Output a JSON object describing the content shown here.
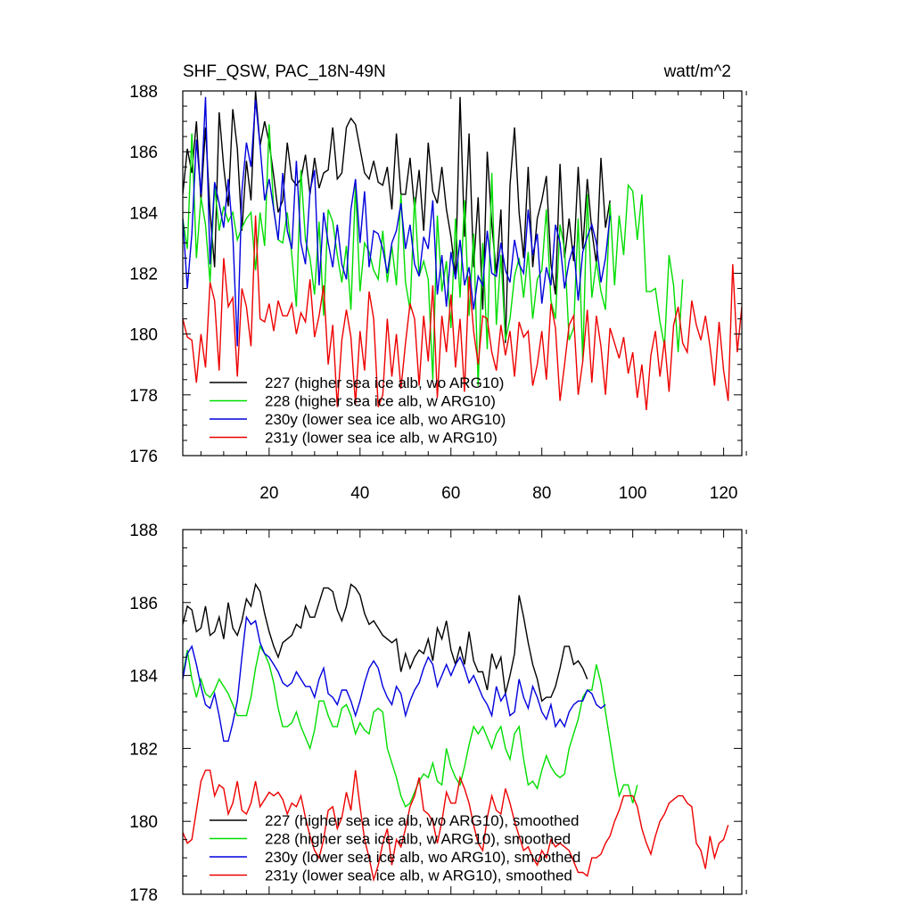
{
  "chart_data": [
    {
      "type": "line",
      "title": "SHF_QSW, PAC_18N-49N",
      "units": "watt/m^2",
      "xlabel": "",
      "ylabel": "",
      "xlim": [
        1,
        124
      ],
      "ylim": [
        176,
        188
      ],
      "x_ticks": [
        20,
        40,
        60,
        80,
        100,
        120
      ],
      "y_ticks": [
        176,
        178,
        180,
        182,
        184,
        186,
        188
      ],
      "legend_position": "bottom-left",
      "series": [
        {
          "name": "227 (higher sea ice alb, wo ARG10)",
          "color": "#000000",
          "values": [
            184.6,
            186.1,
            185.3,
            187.0,
            184.4,
            186.8,
            184.0,
            182.2,
            187.3,
            185.5,
            184.2,
            187.4,
            186.1,
            183.4,
            185.7,
            184.4,
            188.0,
            186.2,
            187.0,
            186.3,
            185.2,
            184.0,
            184.4,
            186.3,
            185.1,
            184.9,
            185.1,
            185.9,
            184.6,
            185.8,
            184.8,
            185.3,
            185.4,
            186.8,
            185.1,
            185.3,
            186.8,
            187.1,
            186.9,
            186.1,
            185.3,
            185.1,
            185.7,
            185.0,
            184.9,
            185.5,
            184.1,
            186.6,
            184.6,
            184.6,
            185.8,
            184.1,
            185.4,
            183.4,
            186.3,
            184.7,
            184.3,
            185.5,
            184.1,
            183.2,
            181.9,
            187.8,
            183.2,
            186.6,
            182.2,
            184.5,
            180.8,
            186.0,
            183.6,
            182.0,
            184.1,
            179.7,
            184.9,
            186.8,
            184.0,
            182.5,
            185.5,
            182.2,
            183.8,
            184.4,
            185.2,
            182.3,
            181.3,
            185.6,
            182.5,
            183.8,
            182.4,
            185.5,
            182.8,
            185.1,
            183.4,
            182.3,
            185.8,
            183.5,
            184.4
          ]
        },
        {
          "name": "228 (higher sea ice alb, w ARG10)",
          "color": "#00dd00",
          "values": [
            183.8,
            182.8,
            186.6,
            182.5,
            184.5,
            183.6,
            181.7,
            184.9,
            183.4,
            184.2,
            183.7,
            184.0,
            183.1,
            183.5,
            183.8,
            184.0,
            182.1,
            184.0,
            182.9,
            186.9,
            184.1,
            183.1,
            183.0,
            184.0,
            182.6,
            180.9,
            185.4,
            183.1,
            182.5,
            181.3,
            183.7,
            180.6,
            184.1,
            183.7,
            182.6,
            181.7,
            182.9,
            180.8,
            184.9,
            181.4,
            183.0,
            182.7,
            182.1,
            181.8,
            183.4,
            181.7,
            182.9,
            181.6,
            184.6,
            181.7,
            180.8,
            184.5,
            181.9,
            182.4,
            181.8,
            178.5,
            183.9,
            181.4,
            182.4,
            180.2,
            183.8,
            181.2,
            184.4,
            180.6,
            183.3,
            178.3,
            183.0,
            179.5,
            185.3,
            180.3,
            182.6,
            179.8,
            180.5,
            181.9,
            182.5,
            181.2,
            182.7,
            180.5,
            181.8,
            182.1,
            184.1,
            181.1,
            180.5,
            183.6,
            182.8,
            179.8,
            180.2,
            183.8,
            179.1,
            184.6,
            181.2,
            182.4,
            181.4,
            180.8,
            184.3,
            181.6,
            183.9,
            182.6,
            184.9,
            184.7,
            183.1,
            184.6,
            181.4,
            181.4,
            181.5,
            180.4,
            179.6,
            182.6,
            181.6,
            179.4,
            181.8
          ]
        },
        {
          "name": "230y (lower sea ice alb, wo ARG10)",
          "color": "#0000dd",
          "values": [
            183.8,
            181.5,
            183.3,
            186.4,
            184.6,
            187.8,
            182.3,
            185.0,
            184.3,
            183.5,
            185.1,
            183.3,
            179.6,
            184.7,
            186.3,
            185.5,
            187.7,
            186.2,
            184.4,
            185.1,
            184.1,
            183.1,
            185.3,
            183.4,
            182.8,
            185.7,
            183.0,
            182.3,
            184.7,
            185.4,
            181.6,
            184.0,
            183.0,
            182.2,
            183.6,
            182.3,
            181.8,
            184.1,
            185.1,
            183.0,
            184.7,
            182.2,
            183.4,
            183.3,
            182.8,
            182.0,
            183.0,
            183.4,
            184.3,
            182.8,
            183.6,
            182.3,
            181.9,
            183.2,
            182.8,
            184.4,
            181.3,
            182.6,
            180.9,
            182.7,
            181.8,
            183.1,
            181.6,
            182.2,
            180.8,
            181.9,
            181.6,
            183.4,
            182.0,
            181.9,
            183.0,
            182.1,
            181.7,
            183.1,
            182.3,
            182.0,
            184.1,
            182.6,
            183.3,
            181.0,
            182.2,
            181.6,
            183.6,
            183.0,
            181.5,
            182.4,
            182.9,
            181.1,
            182.7,
            183.2,
            183.6,
            183.0,
            181.7,
            182.5,
            183.9
          ]
        },
        {
          "name": "231y (lower sea ice alb, w ARG10)",
          "color": "#ee0000",
          "values": [
            180.5,
            179.9,
            179.8,
            178.4,
            180.0,
            178.9,
            181.7,
            181.1,
            178.8,
            182.5,
            180.9,
            181.2,
            178.6,
            181.5,
            180.9,
            179.6,
            183.9,
            180.5,
            180.4,
            181.0,
            180.1,
            181.1,
            180.6,
            180.6,
            181.0,
            180.0,
            180.7,
            180.4,
            181.8,
            179.9,
            180.6,
            181.6,
            179.0,
            180.3,
            177.6,
            179.8,
            180.8,
            179.9,
            177.7,
            180.1,
            178.8,
            181.4,
            180.5,
            177.6,
            178.0,
            180.5,
            178.6,
            180.0,
            178.2,
            179.7,
            181.0,
            180.5,
            178.3,
            180.6,
            179.1,
            181.6,
            177.9,
            180.6,
            179.4,
            181.3,
            178.9,
            180.5,
            178.1,
            181.9,
            180.1,
            179.0,
            180.6,
            180.5,
            179.4,
            178.8,
            180.3,
            179.3,
            180.1,
            178.6,
            180.4,
            179.9,
            180.1,
            178.3,
            179.0,
            180.1,
            178.5,
            181.0,
            180.2,
            177.8,
            179.0,
            180.3,
            180.6,
            178.0,
            179.1,
            180.8,
            178.4,
            180.6,
            179.6,
            178.0,
            180.2,
            179.7,
            179.2,
            179.9,
            178.7,
            179.4,
            177.9,
            179.0,
            177.5,
            179.3,
            180.1,
            178.6,
            179.8,
            178.1,
            180.3,
            180.9,
            179.7,
            179.4,
            181.1,
            180.3,
            179.8,
            180.6,
            179.6,
            178.3,
            180.4,
            178.8,
            177.8,
            182.3,
            179.4,
            180.9
          ]
        }
      ]
    },
    {
      "type": "line",
      "title": "",
      "xlabel": "",
      "ylabel": "",
      "xlim": [
        1,
        124
      ],
      "ylim": [
        178,
        188
      ],
      "y_ticks": [
        178,
        180,
        182,
        184,
        186,
        188
      ],
      "legend_position": "bottom-left",
      "series": [
        {
          "name": "227 (higher sea ice alb, wo ARG10), smoothed",
          "color": "#000000",
          "values": [
            185.4,
            185.9,
            185.8,
            185.2,
            185.3,
            185.9,
            185.1,
            185.2,
            185.6,
            185.0,
            186.0,
            185.3,
            185.1,
            185.5,
            186.1,
            185.9,
            186.5,
            186.3,
            185.7,
            185.2,
            184.8,
            184.5,
            184.9,
            185.0,
            185.1,
            185.4,
            185.3,
            185.9,
            185.6,
            185.6,
            186.0,
            186.4,
            186.4,
            186.3,
            185.8,
            185.5,
            185.9,
            186.5,
            186.4,
            186.2,
            185.7,
            185.4,
            185.5,
            185.3,
            185.1,
            185.0,
            184.9,
            185.0,
            184.1,
            184.6,
            184.2,
            184.5,
            184.7,
            184.6,
            185.0,
            184.4,
            185.3,
            185.0,
            185.5,
            184.7,
            184.3,
            184.8,
            184.3,
            185.2,
            184.4,
            184.1,
            184.1,
            183.6,
            184.6,
            184.2,
            184.5,
            183.5,
            184.0,
            184.6,
            186.2,
            185.6,
            184.9,
            184.3,
            183.9,
            183.3,
            183.4,
            183.4,
            183.7,
            184.2,
            184.8,
            184.8,
            184.3,
            184.4,
            184.2,
            183.9
          ]
        },
        {
          "name": "228 (higher sea ice alb, w ARG10), smoothed",
          "color": "#00dd00",
          "values": [
            184.0,
            184.7,
            183.9,
            183.4,
            183.9,
            183.5,
            183.4,
            183.6,
            183.9,
            183.7,
            183.5,
            183.2,
            182.9,
            182.9,
            182.9,
            183.4,
            184.2,
            184.8,
            184.6,
            184.3,
            183.8,
            183.1,
            182.6,
            182.6,
            182.7,
            183.0,
            182.6,
            182.3,
            182.0,
            182.5,
            183.3,
            183.3,
            182.9,
            182.6,
            182.6,
            183.1,
            183.2,
            182.9,
            182.4,
            182.7,
            182.5,
            182.4,
            183.0,
            183.1,
            183.0,
            182.0,
            181.6,
            181.2,
            180.7,
            180.4,
            180.5,
            180.8,
            181.1,
            181.3,
            181.2,
            181.6,
            181.1,
            181.0,
            182.0,
            181.5,
            181.2,
            181.0,
            181.5,
            182.1,
            182.6,
            182.4,
            182.6,
            182.3,
            182.0,
            182.4,
            182.6,
            182.0,
            181.7,
            182.4,
            182.6,
            181.7,
            181.0,
            181.1,
            180.9,
            181.4,
            181.8,
            181.5,
            181.3,
            181.2,
            181.3,
            182.0,
            182.4,
            182.8,
            183.4,
            183.6,
            183.6,
            184.3,
            183.8,
            183.0,
            182.2,
            181.4,
            180.7,
            181.0,
            181.0,
            180.5,
            181.0
          ]
        },
        {
          "name": "230y (lower sea ice alb, wo ARG10), smoothed",
          "color": "#0000dd",
          "values": [
            183.9,
            184.6,
            184.8,
            184.3,
            183.7,
            183.2,
            183.1,
            183.5,
            182.9,
            182.2,
            182.2,
            182.7,
            183.3,
            184.5,
            185.6,
            185.4,
            185.5,
            184.9,
            184.6,
            184.5,
            184.3,
            184.1,
            183.8,
            183.7,
            183.8,
            184.1,
            183.9,
            183.7,
            183.7,
            183.4,
            183.9,
            184.2,
            183.5,
            183.4,
            183.2,
            183.6,
            183.6,
            183.3,
            182.9,
            183.3,
            183.8,
            184.2,
            184.4,
            184.2,
            183.7,
            183.4,
            183.2,
            183.7,
            183.5,
            182.9,
            183.3,
            183.6,
            183.8,
            184.2,
            184.5,
            184.3,
            183.7,
            184.0,
            184.3,
            184.0,
            184.3,
            184.5,
            184.2,
            183.8,
            184.0,
            183.7,
            183.4,
            183.2,
            182.9,
            183.7,
            183.3,
            183.5,
            182.9,
            183.0,
            183.9,
            183.4,
            183.1,
            183.7,
            183.4,
            183.0,
            182.8,
            183.2,
            182.6,
            182.8,
            182.6,
            183.0,
            183.2,
            183.3,
            183.3,
            183.6,
            183.5,
            183.2,
            183.1,
            183.2
          ]
        },
        {
          "name": "231y (lower sea ice alb, w ARG10), smoothed",
          "color": "#ee0000",
          "values": [
            179.7,
            179.4,
            179.5,
            180.3,
            181.1,
            181.4,
            181.4,
            180.7,
            181.0,
            180.9,
            180.2,
            180.5,
            181.1,
            180.3,
            180.2,
            180.5,
            181.1,
            180.4,
            180.6,
            180.8,
            180.7,
            180.8,
            180.6,
            180.2,
            180.5,
            180.4,
            180.7,
            180.1,
            179.6,
            179.2,
            179.0,
            179.5,
            180.3,
            180.4,
            179.8,
            180.1,
            180.8,
            180.3,
            181.4,
            180.4,
            179.5,
            179.0,
            178.4,
            178.8,
            179.4,
            179.8,
            178.8,
            179.5,
            179.3,
            179.8,
            180.4,
            180.7,
            181.2,
            180.3,
            180.2,
            180.0,
            179.4,
            180.0,
            180.8,
            180.5,
            180.5,
            181.2,
            180.9,
            180.5,
            179.9,
            179.4,
            179.2,
            180.1,
            180.7,
            180.3,
            180.2,
            180.9,
            180.5,
            180.0,
            179.6,
            179.2,
            179.3,
            179.0,
            178.8,
            179.2,
            179.0,
            179.5,
            179.3,
            179.4,
            179.3,
            179.2,
            178.9,
            178.6,
            178.6,
            178.5,
            179.0,
            179.0,
            179.1,
            179.4,
            179.6,
            180.0,
            180.3,
            180.7,
            180.7,
            180.7,
            180.4,
            179.8,
            179.4,
            179.1,
            179.6,
            180.0,
            180.2,
            180.5,
            180.6,
            180.7,
            180.7,
            180.5,
            180.4,
            179.4,
            179.2,
            178.7,
            179.6,
            179.0,
            179.4,
            179.5,
            179.9
          ]
        }
      ]
    }
  ]
}
